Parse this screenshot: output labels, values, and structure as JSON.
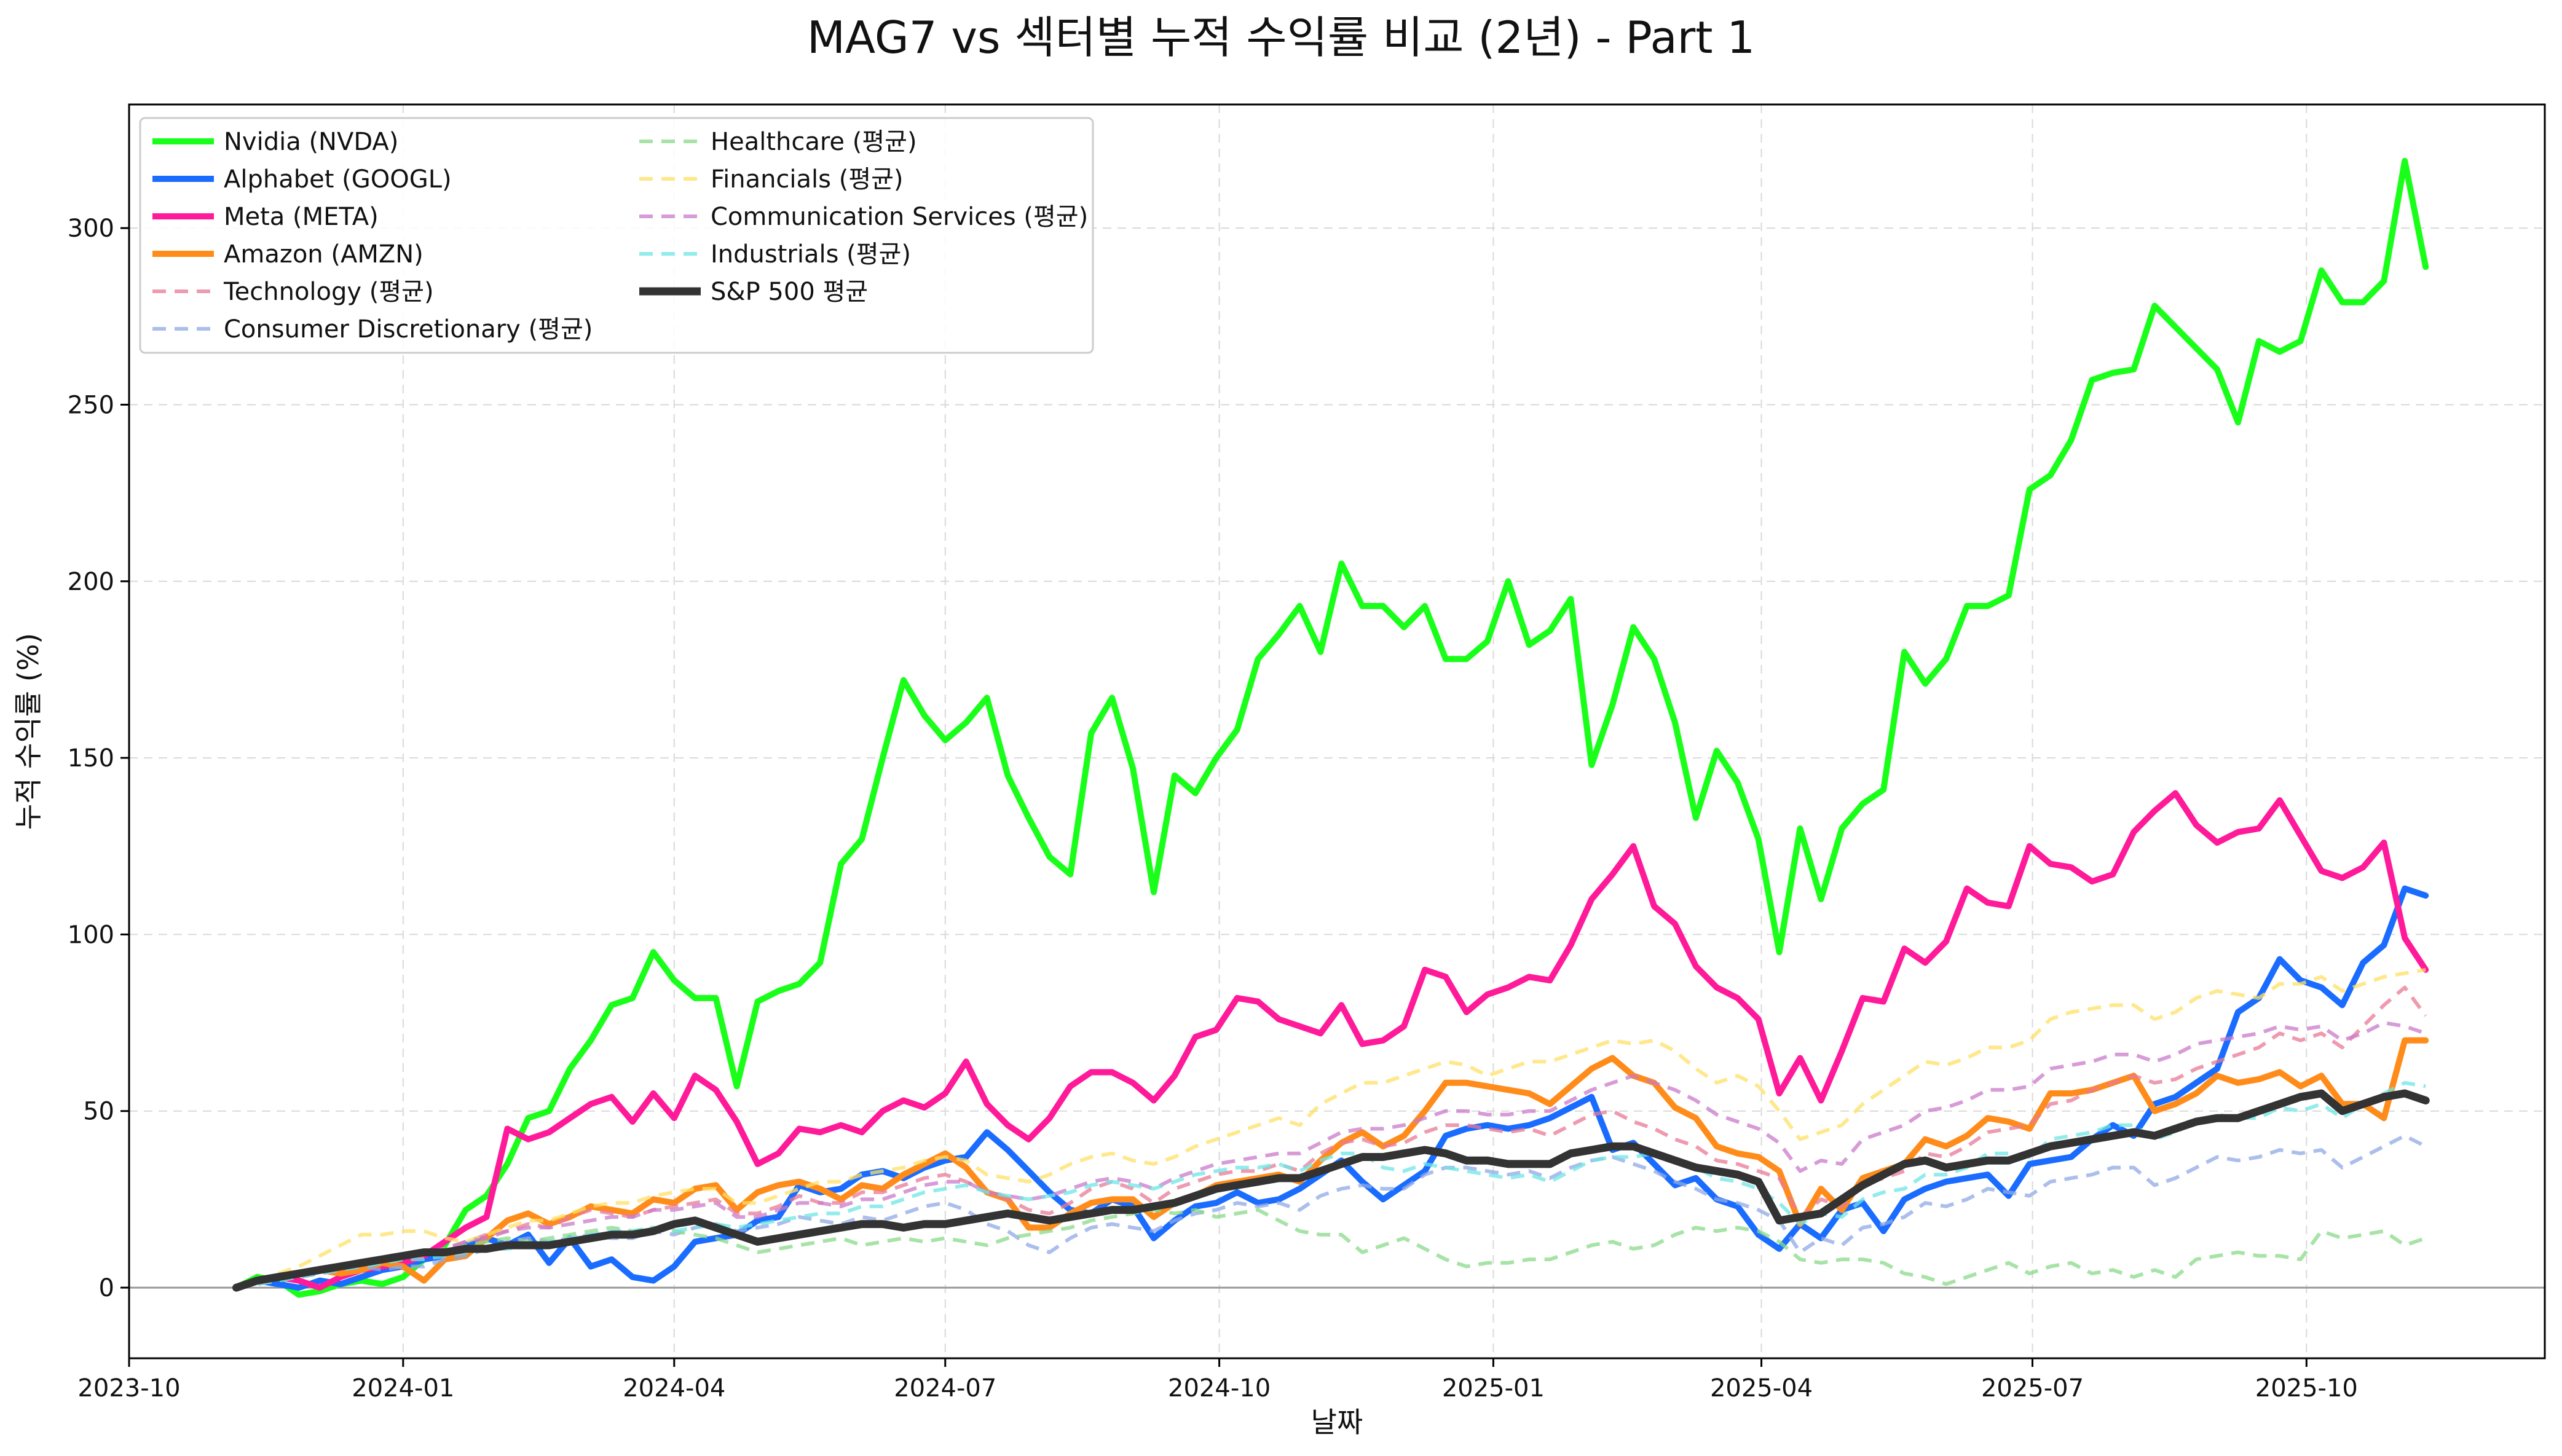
{
  "chart_data": {
    "type": "line",
    "title": "MAG7 vs 섹터별 누적 수익률 비교 (2년) - Part 1",
    "xlabel": "날짜",
    "ylabel": "누적 수익률 (%)",
    "xlim": [
      "2023-10-01",
      "2025-12-20"
    ],
    "ylim": [
      -20,
      335
    ],
    "x_ticks": [
      "2023-10",
      "2024-01",
      "2024-04",
      "2024-07",
      "2024-10",
      "2025-01",
      "2025-04",
      "2025-07",
      "2025-10"
    ],
    "y_ticks": [
      0,
      50,
      100,
      150,
      200,
      250,
      300
    ],
    "grid": true,
    "legend_position": "top-left",
    "x_start": "2023-11-06",
    "x_step_days": 7,
    "series": [
      {
        "name": "Nvidia (NVDA)",
        "color": "#1aff1a",
        "style": "solid",
        "width": 10,
        "values": [
          0,
          3,
          2,
          -2,
          -1,
          1,
          2,
          1,
          3,
          8,
          12,
          22,
          26,
          35,
          48,
          50,
          62,
          70,
          80,
          82,
          95,
          87,
          82,
          82,
          57,
          81,
          84,
          86,
          92,
          120,
          127,
          150,
          172,
          162,
          155,
          160,
          167,
          145,
          133,
          122,
          117,
          157,
          167,
          147,
          112,
          145,
          140,
          150,
          158,
          178,
          185,
          193,
          180,
          205,
          193,
          193,
          187,
          193,
          178,
          178,
          183,
          200,
          182,
          186,
          195,
          148,
          165,
          187,
          178,
          160,
          133,
          152,
          143,
          127,
          95,
          130,
          110,
          130,
          137,
          141,
          180,
          171,
          178,
          193,
          193,
          196,
          226,
          230,
          240,
          257,
          259,
          260,
          278,
          272,
          266,
          260,
          245,
          268,
          265,
          268,
          288,
          279,
          279,
          285,
          319,
          289
        ]
      },
      {
        "name": "Alphabet (GOOGL)",
        "color": "#1a6cff",
        "style": "solid",
        "width": 10,
        "values": [
          0,
          2,
          1,
          0,
          2,
          1,
          3,
          5,
          6,
          8,
          9,
          12,
          14,
          12,
          15,
          7,
          14,
          6,
          8,
          3,
          2,
          6,
          13,
          14,
          15,
          19,
          20,
          29,
          27,
          28,
          32,
          33,
          31,
          34,
          36,
          37,
          44,
          39,
          33,
          27,
          22,
          21,
          25,
          23,
          14,
          19,
          23,
          24,
          27,
          24,
          25,
          28,
          32,
          36,
          30,
          25,
          29,
          33,
          43,
          45,
          46,
          45,
          46,
          48,
          51,
          54,
          39,
          41,
          35,
          29,
          31,
          25,
          23,
          15,
          11,
          18,
          14,
          22,
          24,
          16,
          25,
          28,
          30,
          31,
          32,
          26,
          35,
          36,
          37,
          42,
          46,
          43,
          52,
          54,
          58,
          62,
          78,
          82,
          93,
          87,
          85,
          80,
          92,
          97,
          113,
          111
        ]
      },
      {
        "name": "Meta (META)",
        "color": "#ff1a9a",
        "style": "solid",
        "width": 10,
        "values": [
          0,
          2,
          3,
          2,
          0,
          3,
          5,
          6,
          7,
          9,
          13,
          17,
          20,
          45,
          42,
          44,
          48,
          52,
          54,
          47,
          55,
          48,
          60,
          56,
          47,
          35,
          38,
          45,
          44,
          46,
          44,
          50,
          53,
          51,
          55,
          64,
          52,
          46,
          42,
          48,
          57,
          61,
          61,
          58,
          53,
          60,
          71,
          73,
          82,
          81,
          76,
          74,
          72,
          80,
          69,
          70,
          74,
          90,
          88,
          78,
          83,
          85,
          88,
          87,
          97,
          110,
          117,
          125,
          108,
          103,
          91,
          85,
          82,
          76,
          55,
          65,
          53,
          67,
          82,
          81,
          96,
          92,
          98,
          113,
          109,
          108,
          125,
          120,
          119,
          115,
          117,
          129,
          135,
          140,
          131,
          126,
          129,
          130,
          138,
          128,
          118,
          116,
          119,
          126,
          99,
          90
        ]
      },
      {
        "name": "Amazon (AMZN)",
        "color": "#ff8c1a",
        "style": "solid",
        "width": 10,
        "values": [
          0,
          2,
          3,
          4,
          5,
          4,
          5,
          7,
          6,
          2,
          8,
          9,
          14,
          19,
          21,
          18,
          20,
          23,
          22,
          21,
          25,
          24,
          28,
          29,
          22,
          27,
          29,
          30,
          28,
          25,
          29,
          28,
          32,
          35,
          38,
          34,
          27,
          25,
          17,
          17,
          21,
          24,
          25,
          25,
          20,
          24,
          26,
          29,
          30,
          31,
          32,
          30,
          36,
          41,
          44,
          40,
          43,
          50,
          58,
          58,
          57,
          56,
          55,
          52,
          57,
          62,
          65,
          60,
          58,
          51,
          48,
          40,
          38,
          37,
          33,
          18,
          28,
          22,
          31,
          33,
          35,
          42,
          40,
          43,
          48,
          47,
          45,
          55,
          55,
          56,
          58,
          60,
          50,
          52,
          55,
          60,
          58,
          59,
          61,
          57,
          60,
          52,
          52,
          48,
          70,
          70
        ]
      },
      {
        "name": "Technology (평균)",
        "color": "#e87a96",
        "style": "dashed",
        "width": 6,
        "values": [
          0,
          2,
          3,
          4,
          5,
          6,
          6,
          7,
          8,
          9,
          11,
          13,
          15,
          16,
          18,
          17,
          20,
          22,
          21,
          20,
          22,
          23,
          24,
          25,
          21,
          21,
          23,
          26,
          24,
          24,
          27,
          27,
          29,
          31,
          32,
          30,
          27,
          25,
          22,
          21,
          24,
          28,
          30,
          28,
          24,
          28,
          30,
          32,
          33,
          33,
          35,
          33,
          38,
          41,
          42,
          40,
          41,
          44,
          46,
          46,
          45,
          44,
          45,
          43,
          46,
          49,
          50,
          47,
          45,
          42,
          40,
          36,
          35,
          33,
          31,
          20,
          25,
          23,
          29,
          31,
          33,
          38,
          37,
          40,
          44,
          45,
          46,
          52,
          53,
          56,
          58,
          60,
          58,
          59,
          62,
          64,
          66,
          68,
          72,
          70,
          72,
          68,
          74,
          80,
          85,
          77
        ]
      },
      {
        "name": "Consumer Discretionary (평균)",
        "color": "#8fa8e6",
        "style": "dashed",
        "width": 6,
        "values": [
          0,
          1,
          2,
          3,
          4,
          5,
          6,
          5,
          6,
          6,
          8,
          9,
          11,
          13,
          14,
          13,
          14,
          15,
          14,
          14,
          16,
          15,
          17,
          18,
          16,
          17,
          18,
          20,
          19,
          18,
          20,
          19,
          21,
          23,
          24,
          22,
          18,
          16,
          12,
          10,
          14,
          17,
          18,
          17,
          16,
          19,
          21,
          22,
          24,
          23,
          24,
          22,
          26,
          28,
          29,
          28,
          28,
          32,
          34,
          34,
          33,
          32,
          33,
          31,
          34,
          36,
          37,
          35,
          33,
          30,
          28,
          25,
          24,
          22,
          19,
          10,
          14,
          12,
          17,
          18,
          20,
          24,
          23,
          25,
          28,
          27,
          26,
          30,
          31,
          32,
          34,
          34,
          29,
          31,
          34,
          37,
          36,
          37,
          39,
          38,
          39,
          34,
          37,
          40,
          43,
          40
        ]
      },
      {
        "name": "Healthcare (평균)",
        "color": "#8ad98a",
        "style": "dashed",
        "width": 6,
        "values": [
          0,
          1,
          2,
          3,
          4,
          5,
          6,
          7,
          8,
          10,
          11,
          12,
          13,
          14,
          13,
          14,
          15,
          16,
          17,
          16,
          17,
          16,
          15,
          14,
          12,
          10,
          11,
          12,
          13,
          14,
          12,
          13,
          14,
          13,
          14,
          13,
          12,
          14,
          15,
          16,
          17,
          19,
          20,
          21,
          22,
          21,
          22,
          20,
          21,
          22,
          19,
          16,
          15,
          15,
          10,
          12,
          14,
          11,
          8,
          6,
          7,
          7,
          8,
          8,
          10,
          12,
          13,
          11,
          12,
          15,
          17,
          16,
          17,
          16,
          13,
          8,
          7,
          8,
          8,
          7,
          4,
          3,
          1,
          3,
          5,
          7,
          4,
          6,
          7,
          4,
          5,
          3,
          5,
          3,
          8,
          9,
          10,
          9,
          9,
          8,
          16,
          14,
          15,
          16,
          12,
          14
        ]
      },
      {
        "name": "Financials (평균)",
        "color": "#ffe066",
        "style": "dashed",
        "width": 6,
        "values": [
          0,
          2,
          4,
          6,
          9,
          12,
          15,
          15,
          16,
          16,
          14,
          13,
          15,
          17,
          19,
          19,
          21,
          23,
          24,
          24,
          26,
          27,
          28,
          28,
          24,
          24,
          26,
          28,
          30,
          30,
          32,
          33,
          34,
          36,
          37,
          36,
          32,
          31,
          30,
          32,
          35,
          37,
          38,
          36,
          35,
          37,
          40,
          42,
          44,
          46,
          48,
          46,
          52,
          55,
          58,
          58,
          60,
          62,
          64,
          63,
          60,
          62,
          64,
          64,
          66,
          68,
          70,
          69,
          70,
          67,
          62,
          58,
          60,
          57,
          50,
          42,
          44,
          46,
          52,
          56,
          60,
          64,
          63,
          65,
          68,
          68,
          70,
          76,
          78,
          79,
          80,
          80,
          76,
          78,
          82,
          84,
          83,
          82,
          86,
          86,
          88,
          84,
          86,
          88,
          89,
          90
        ]
      },
      {
        "name": "Communication Services (평균)",
        "color": "#c97ac9",
        "style": "dashed",
        "width": 6,
        "values": [
          0,
          1,
          2,
          3,
          4,
          5,
          6,
          8,
          9,
          10,
          11,
          13,
          14,
          16,
          17,
          17,
          18,
          19,
          20,
          20,
          22,
          22,
          23,
          24,
          20,
          20,
          22,
          24,
          24,
          23,
          25,
          25,
          27,
          29,
          30,
          30,
          27,
          26,
          25,
          26,
          28,
          30,
          31,
          30,
          28,
          31,
          33,
          35,
          36,
          37,
          38,
          38,
          41,
          44,
          45,
          45,
          46,
          48,
          50,
          50,
          49,
          49,
          50,
          50,
          53,
          56,
          58,
          60,
          58,
          56,
          53,
          49,
          47,
          45,
          41,
          33,
          36,
          35,
          42,
          44,
          46,
          50,
          51,
          53,
          56,
          56,
          57,
          62,
          63,
          64,
          66,
          66,
          64,
          66,
          69,
          70,
          71,
          72,
          74,
          73,
          74,
          70,
          72,
          75,
          74,
          72
        ]
      },
      {
        "name": "Industrials (평균)",
        "color": "#6ee6e6",
        "style": "dashed",
        "width": 6,
        "values": [
          0,
          1,
          2,
          3,
          4,
          5,
          6,
          7,
          8,
          8,
          9,
          10,
          11,
          11,
          12,
          13,
          14,
          15,
          16,
          16,
          17,
          16,
          17,
          18,
          17,
          18,
          19,
          20,
          21,
          21,
          23,
          23,
          25,
          27,
          28,
          29,
          27,
          26,
          25,
          26,
          27,
          29,
          30,
          29,
          28,
          30,
          32,
          33,
          34,
          34,
          35,
          33,
          36,
          38,
          38,
          34,
          33,
          35,
          34,
          33,
          32,
          31,
          32,
          30,
          33,
          36,
          37,
          37,
          38,
          36,
          34,
          31,
          30,
          28,
          24,
          18,
          21,
          20,
          25,
          27,
          28,
          32,
          32,
          34,
          38,
          38,
          37,
          42,
          43,
          44,
          46,
          46,
          42,
          44,
          47,
          49,
          48,
          48,
          51,
          50,
          52,
          48,
          52,
          55,
          58,
          57
        ]
      },
      {
        "name": "S&P 500 평균",
        "color": "#333333",
        "style": "solid",
        "width": 13,
        "values": [
          0,
          2,
          3,
          4,
          5,
          6,
          7,
          8,
          9,
          10,
          10,
          11,
          11,
          12,
          12,
          12,
          13,
          14,
          15,
          15,
          16,
          18,
          19,
          17,
          15,
          13,
          14,
          15,
          16,
          17,
          18,
          18,
          17,
          18,
          18,
          19,
          20,
          21,
          20,
          19,
          20,
          21,
          22,
          22,
          23,
          24,
          26,
          28,
          29,
          30,
          31,
          31,
          33,
          35,
          37,
          37,
          38,
          39,
          38,
          36,
          36,
          35,
          35,
          35,
          38,
          39,
          40,
          40,
          38,
          36,
          34,
          33,
          32,
          30,
          19,
          20,
          21,
          25,
          29,
          32,
          35,
          36,
          34,
          35,
          36,
          36,
          38,
          40,
          41,
          42,
          43,
          44,
          43,
          45,
          47,
          48,
          48,
          50,
          52,
          54,
          55,
          50,
          52,
          54,
          55,
          53
        ]
      }
    ]
  }
}
